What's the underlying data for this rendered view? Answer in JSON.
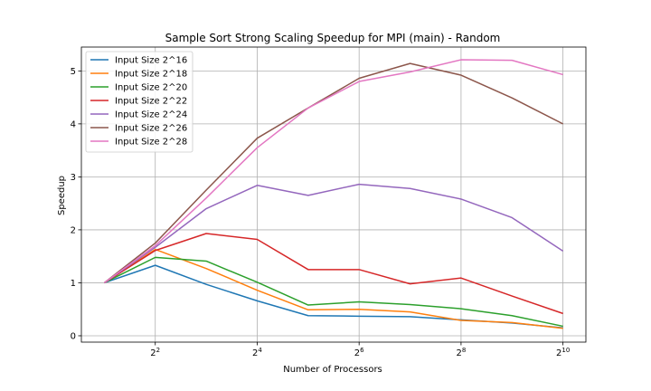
{
  "chart_data": {
    "type": "line",
    "title": "Sample Sort Strong Scaling Speedup for MPI (main) - Random",
    "xlabel": "Number of Processors",
    "ylabel": "Speedup",
    "xscale": "log2",
    "x": [
      2,
      4,
      8,
      16,
      32,
      64,
      128,
      256,
      512,
      1024
    ],
    "x_ticks": [
      {
        "value": 4,
        "base": "2",
        "exp": "2"
      },
      {
        "value": 16,
        "base": "2",
        "exp": "4"
      },
      {
        "value": 64,
        "base": "2",
        "exp": "6"
      },
      {
        "value": 256,
        "base": "2",
        "exp": "8"
      },
      {
        "value": 1024,
        "base": "2",
        "exp": "10"
      }
    ],
    "y_ticks": [
      "0",
      "1",
      "2",
      "3",
      "4",
      "5"
    ],
    "ylim": [
      -0.12,
      5.45
    ],
    "grid": true,
    "legend_position": "top-left",
    "series": [
      {
        "name": "Input Size 2^16",
        "color": "#1f77b4",
        "values": [
          1.0,
          1.33,
          0.97,
          0.66,
          0.38,
          0.37,
          0.36,
          0.3,
          0.24,
          0.15
        ]
      },
      {
        "name": "Input Size 2^18",
        "color": "#ff7f0e",
        "values": [
          1.0,
          1.63,
          1.27,
          0.86,
          0.49,
          0.5,
          0.45,
          0.29,
          0.25,
          0.14
        ]
      },
      {
        "name": "Input Size 2^20",
        "color": "#2ca02c",
        "values": [
          1.0,
          1.48,
          1.41,
          1.01,
          0.58,
          0.64,
          0.59,
          0.51,
          0.38,
          0.18
        ]
      },
      {
        "name": "Input Size 2^22",
        "color": "#d62728",
        "values": [
          1.0,
          1.61,
          1.93,
          1.82,
          1.25,
          1.25,
          0.98,
          1.09,
          0.75,
          0.42
        ]
      },
      {
        "name": "Input Size 2^24",
        "color": "#9467bd",
        "values": [
          1.0,
          1.67,
          2.4,
          2.84,
          2.65,
          2.86,
          2.78,
          2.58,
          2.23,
          1.6
        ]
      },
      {
        "name": "Input Size 2^26",
        "color": "#8c564b",
        "values": [
          1.0,
          1.75,
          2.75,
          3.73,
          4.3,
          4.86,
          5.14,
          4.92,
          4.49,
          4.0
        ]
      },
      {
        "name": "Input Size 2^28",
        "color": "#e377c2",
        "values": [
          1.0,
          1.7,
          2.6,
          3.55,
          4.3,
          4.8,
          4.98,
          5.21,
          5.2,
          4.93
        ]
      }
    ]
  }
}
